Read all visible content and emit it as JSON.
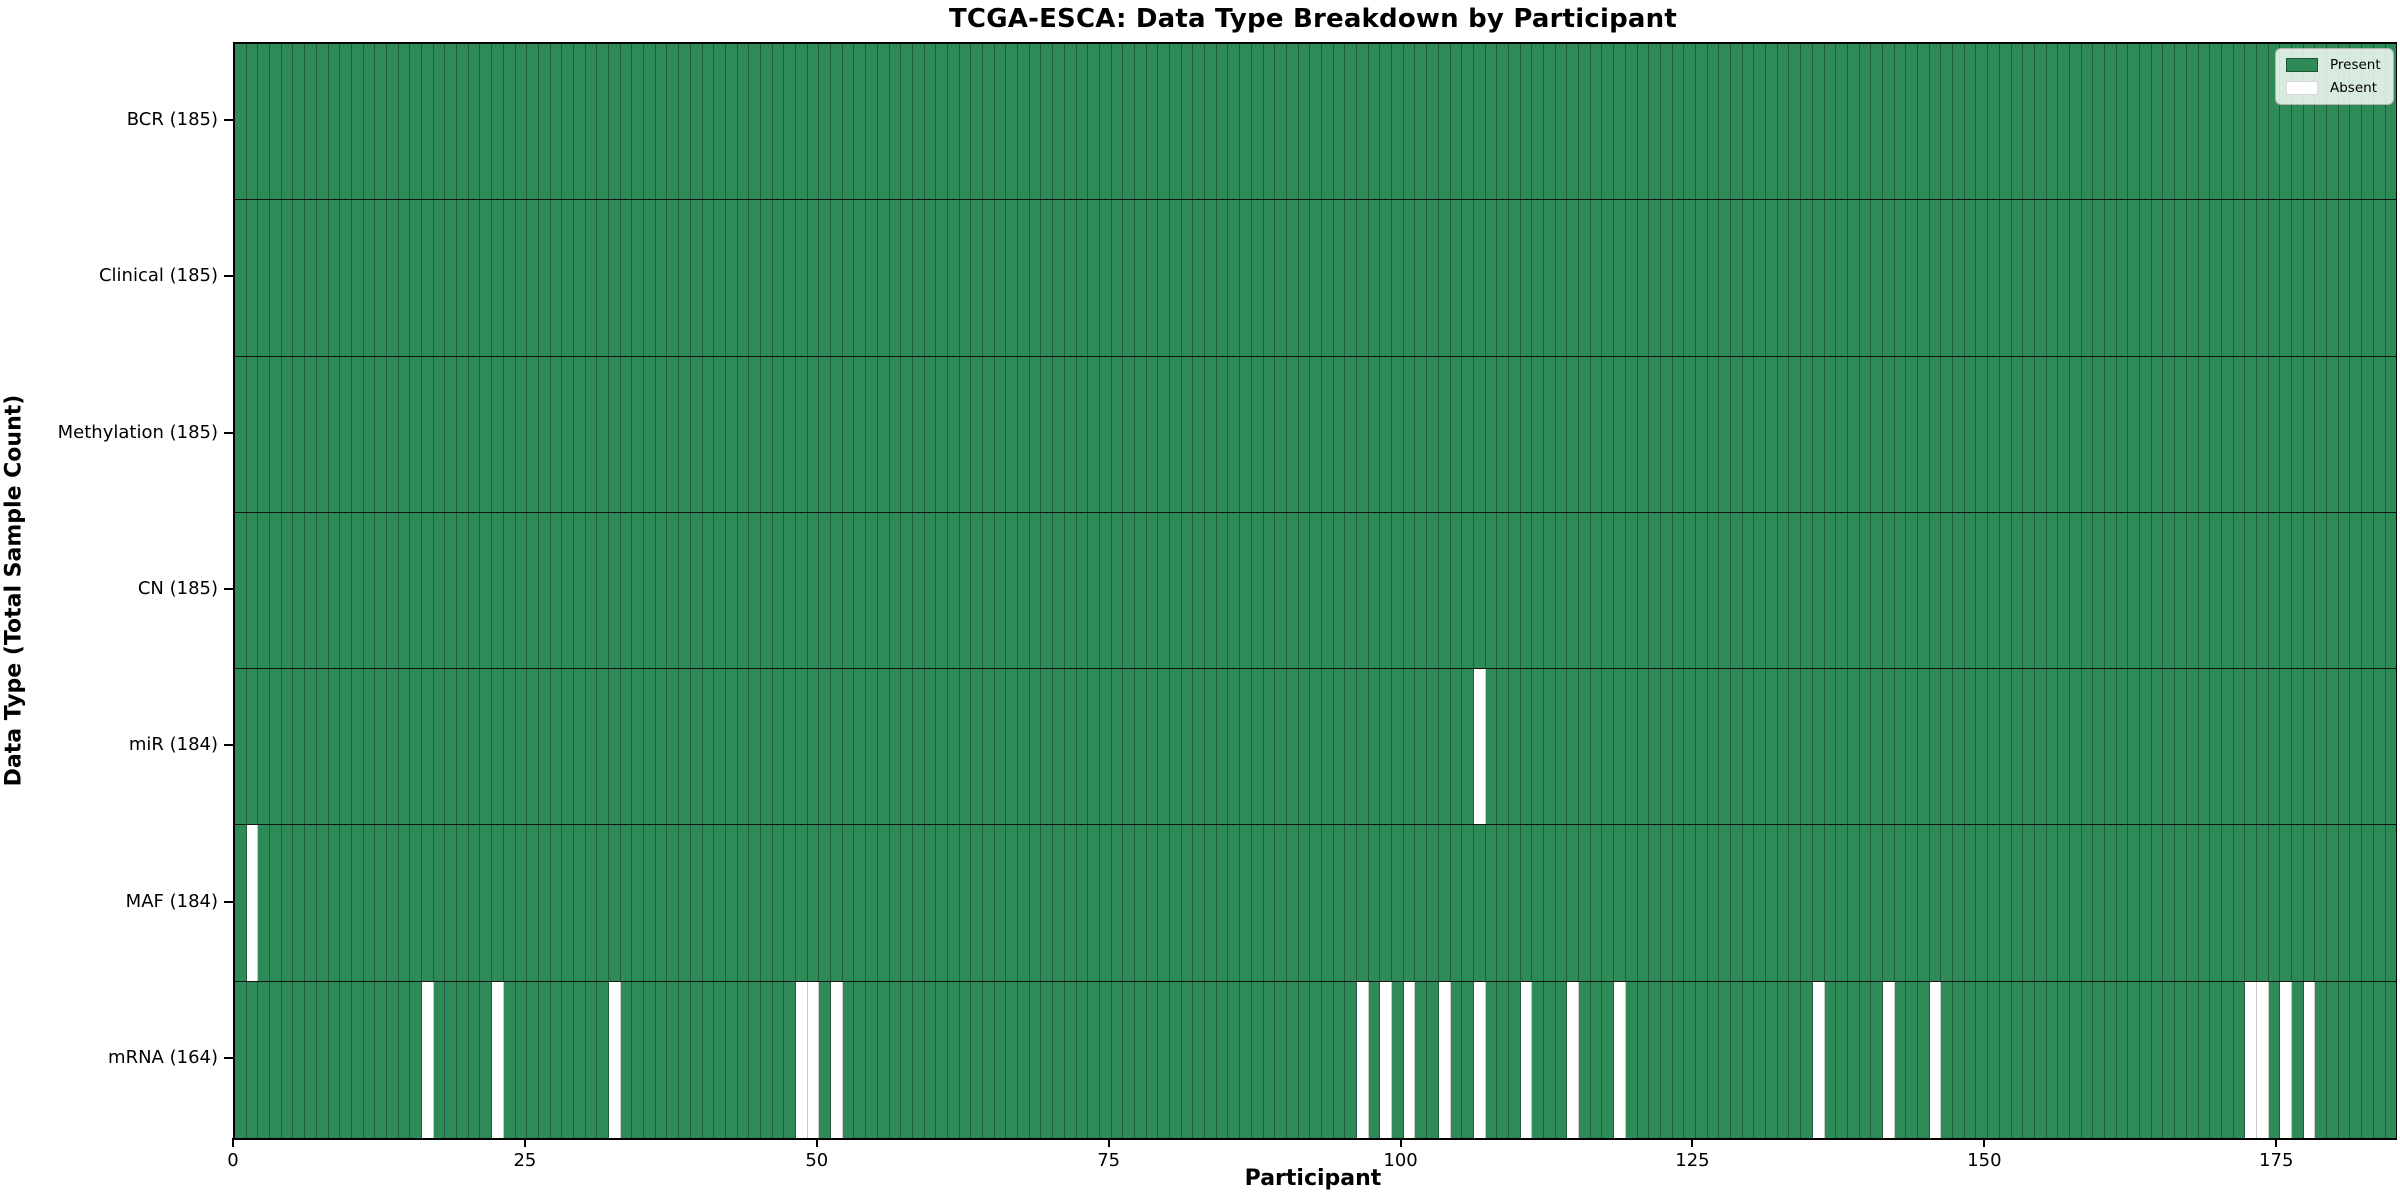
{
  "title": "TCGA-ESCA: Data Type Breakdown by Participant",
  "chart_data": {
    "type": "heatmap",
    "title": "TCGA-ESCA: Data Type Breakdown by Participant",
    "xlabel": "Participant",
    "ylabel": "Data Type (Total Sample Count)",
    "n_participants": 185,
    "x_ticks": [
      0,
      25,
      50,
      75,
      100,
      125,
      150,
      175
    ],
    "x_range": [
      0,
      185
    ],
    "grid": "per-participant column separators, black row separators, black plot spines",
    "legend_position": "upper right inside plot",
    "legend": [
      {
        "label": "Present",
        "color": "#2e8b57"
      },
      {
        "label": "Absent",
        "color": "#ffffff"
      }
    ],
    "rows": [
      {
        "name": "BCR",
        "label": "BCR (185)",
        "total": 185,
        "absent": []
      },
      {
        "name": "Clinical",
        "label": "Clinical (185)",
        "total": 185,
        "absent": []
      },
      {
        "name": "Methylation",
        "label": "Methylation (185)",
        "total": 185,
        "absent": []
      },
      {
        "name": "CN",
        "label": "CN (185)",
        "total": 185,
        "absent": []
      },
      {
        "name": "miR",
        "label": "miR (184)",
        "total": 184,
        "absent": [
          106
        ]
      },
      {
        "name": "MAF",
        "label": "MAF (184)",
        "total": 184,
        "absent": [
          1
        ]
      },
      {
        "name": "mRNA",
        "label": "mRNA (164)",
        "total": 164,
        "absent": [
          16,
          22,
          32,
          48,
          49,
          51,
          96,
          98,
          100,
          103,
          106,
          110,
          114,
          118,
          135,
          141,
          145,
          172,
          173,
          175,
          177
        ]
      }
    ],
    "colors": {
      "present": "#2e8b57",
      "absent": "#ffffff",
      "cell_edge": "#235c3c",
      "absent_cell_edge": "#c9c9c9",
      "row_separator": "#141414",
      "spine": "#000000",
      "background": "#ffffff"
    }
  }
}
